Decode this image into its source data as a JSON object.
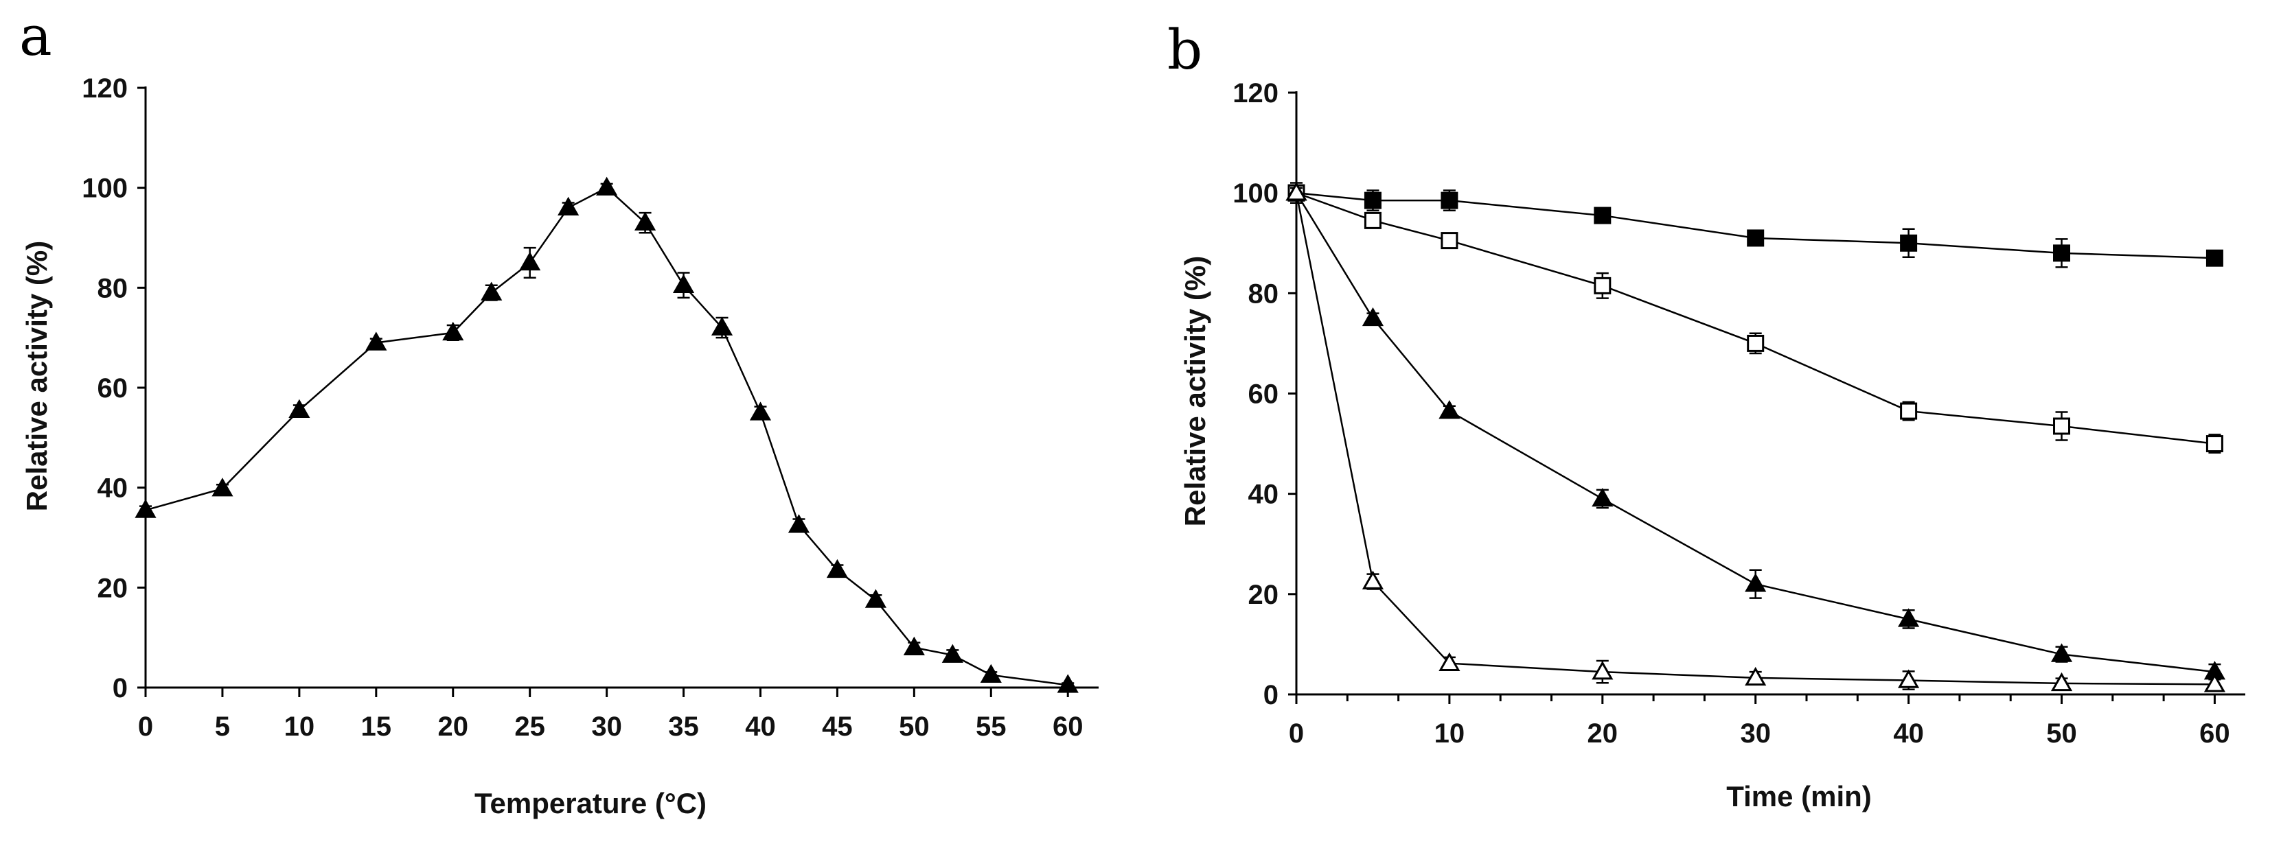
{
  "chart_data": [
    {
      "panel": "a",
      "type": "line",
      "title": "",
      "xlabel": "Temperature (°C)",
      "ylabel": "Relative activity (%)",
      "xlim": [
        0,
        62
      ],
      "ylim": [
        0,
        120
      ],
      "xticks": [
        0,
        5,
        10,
        15,
        20,
        25,
        30,
        35,
        40,
        45,
        50,
        55,
        60
      ],
      "yticks": [
        0,
        20,
        40,
        60,
        80,
        100,
        120
      ],
      "series": [
        {
          "name": "activity",
          "marker": "filled-triangle",
          "x": [
            0,
            5,
            10,
            15,
            20,
            22.5,
            25,
            27.5,
            30,
            32.5,
            35,
            37.5,
            40,
            42.5,
            45,
            47.5,
            50,
            52.5,
            55,
            60
          ],
          "y": [
            35.5,
            39.8,
            55.5,
            69,
            71,
            79,
            85,
            96,
            100,
            93,
            80.5,
            72,
            55,
            32.5,
            23.5,
            17.5,
            8,
            6.5,
            2.5,
            0.5
          ],
          "err": [
            0.8,
            0.8,
            1,
            0.8,
            1.5,
            1.5,
            3,
            1,
            0.8,
            2,
            2.5,
            2,
            1.2,
            1.2,
            1,
            1,
            1,
            1,
            0.6,
            0.4
          ]
        }
      ]
    },
    {
      "panel": "b",
      "type": "line",
      "title": "",
      "xlabel": "Time (min)",
      "ylabel": "Relative activity (%)",
      "xlim": [
        0,
        62
      ],
      "ylim": [
        0,
        120
      ],
      "xticks": [
        0,
        10,
        20,
        30,
        40,
        50,
        60
      ],
      "yticks": [
        0,
        20,
        40,
        60,
        80,
        100,
        120
      ],
      "series": [
        {
          "name": "filled squares",
          "marker": "filled-square",
          "x": [
            0,
            5,
            10,
            20,
            30,
            40,
            50,
            60
          ],
          "y": [
            100,
            98.5,
            98.5,
            95.5,
            91,
            90,
            88,
            87
          ],
          "err": [
            2,
            2,
            2,
            1.2,
            1,
            2.8,
            2.8,
            1.2
          ]
        },
        {
          "name": "open squares",
          "marker": "open-square",
          "x": [
            0,
            5,
            10,
            20,
            30,
            40,
            50,
            60
          ],
          "y": [
            100,
            94.5,
            90.5,
            81.5,
            70,
            56.5,
            53.5,
            50
          ],
          "err": [
            1.5,
            1.5,
            1,
            2.5,
            2,
            1.8,
            2.8,
            1.8
          ]
        },
        {
          "name": "filled triangles",
          "marker": "filled-triangle",
          "x": [
            0,
            5,
            10,
            20,
            30,
            40,
            50,
            60
          ],
          "y": [
            100,
            75,
            56.5,
            39,
            22,
            15,
            8,
            4.5
          ],
          "err": [
            1,
            1,
            1,
            1.8,
            2.8,
            1.8,
            1.5,
            1.5
          ]
        },
        {
          "name": "open triangles",
          "marker": "open-triangle",
          "x": [
            0,
            5,
            10,
            20,
            30,
            40,
            50,
            60
          ],
          "y": [
            100,
            22.5,
            6.2,
            4.5,
            3.3,
            2.8,
            2.2,
            2
          ],
          "err": [
            1,
            1.5,
            1.2,
            2.2,
            1.2,
            1.8,
            1,
            1
          ]
        }
      ]
    }
  ]
}
